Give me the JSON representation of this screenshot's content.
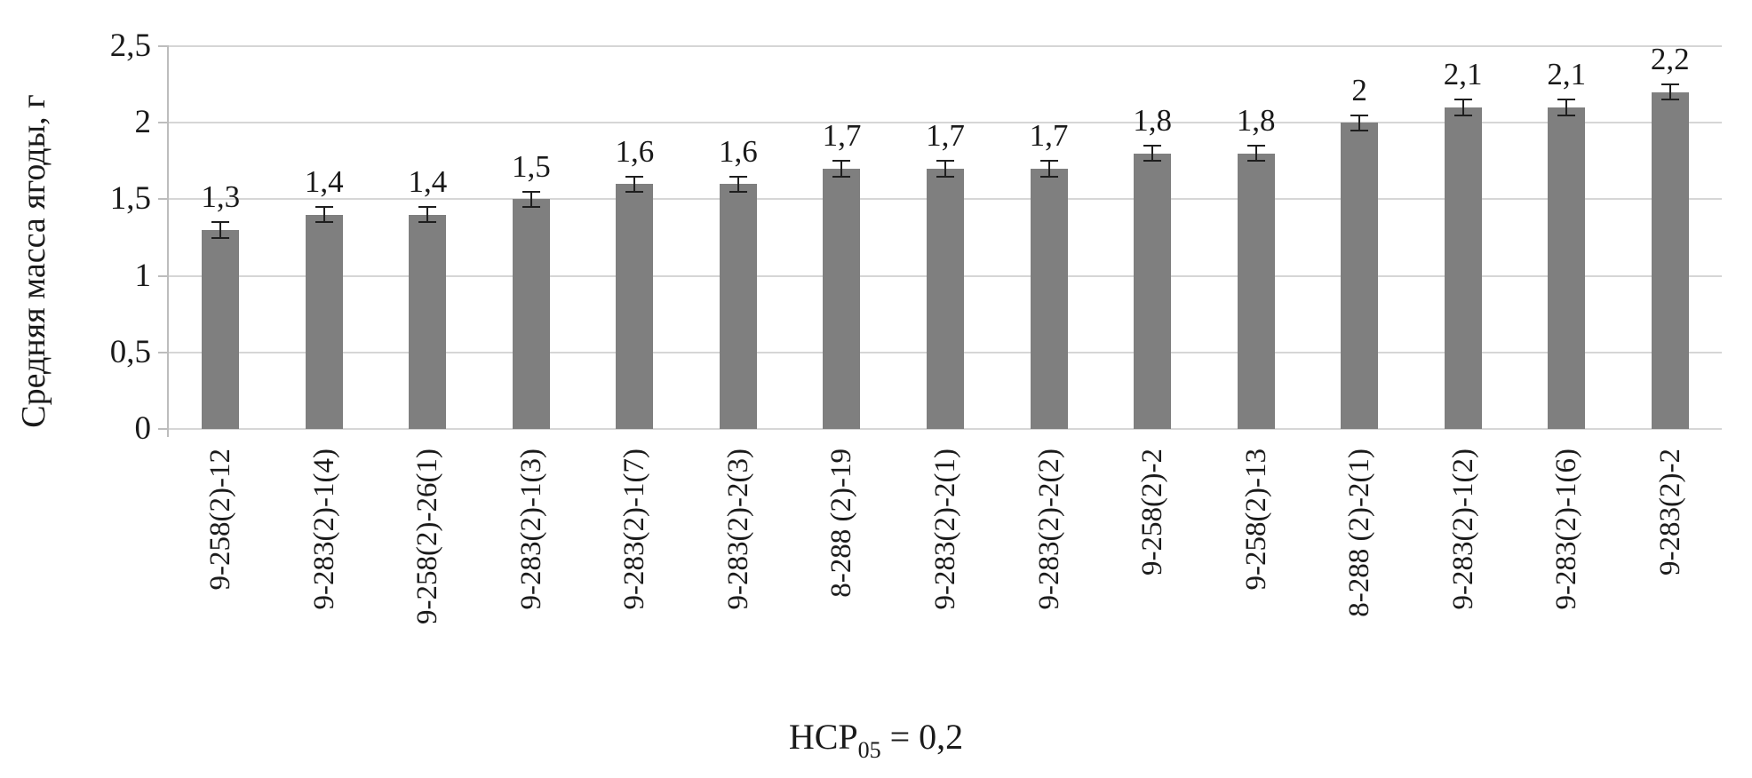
{
  "chart_data": {
    "type": "bar",
    "title": "",
    "ylabel": "Средняя масса ягоды, г",
    "xlabel": "НСР05 = 0,2",
    "xlabel_parts": {
      "base": "НСР",
      "sub": "05",
      "rest": "= 0,2"
    },
    "ylim": [
      0,
      2.5
    ],
    "yticks": [
      {
        "value": 0,
        "label": "0"
      },
      {
        "value": 0.5,
        "label": "0,5"
      },
      {
        "value": 1,
        "label": "1"
      },
      {
        "value": 1.5,
        "label": "1,5"
      },
      {
        "value": 2,
        "label": "2"
      },
      {
        "value": 2.5,
        "label": "2,5"
      }
    ],
    "grid": true,
    "legend_position": "none",
    "bar_color": "#7f7f7f",
    "error_bar": 0.05,
    "categories": [
      "9-258(2)-12",
      "9-283(2)-1(4)",
      "9-258(2)-26(1)",
      "9-283(2)-1(3)",
      "9-283(2)-1(7)",
      "9-283(2)-2(3)",
      "8-288 (2)-19",
      "9-283(2)-2(1)",
      "9-283(2)-2(2)",
      "9-258(2)-2",
      "9-258(2)-13",
      "8-288 (2)-2(1)",
      "9-283(2)-1(2)",
      "9-283(2)-1(6)",
      "9-283(2)-2"
    ],
    "values": [
      1.3,
      1.4,
      1.4,
      1.5,
      1.6,
      1.6,
      1.7,
      1.7,
      1.7,
      1.8,
      1.8,
      2.0,
      2.1,
      2.1,
      2.2
    ],
    "value_labels": [
      "1,3",
      "1,4",
      "1,4",
      "1,5",
      "1,6",
      "1,6",
      "1,7",
      "1,7",
      "1,7",
      "1,8",
      "1,8",
      "2",
      "2,1",
      "2,1",
      "2,2"
    ]
  },
  "colors": {
    "bar": "#7f7f7f",
    "gridline": "#d6d6d6",
    "axis": "#bdbdbd",
    "error": "#1f1f1f",
    "text": "#1a1a1a"
  }
}
